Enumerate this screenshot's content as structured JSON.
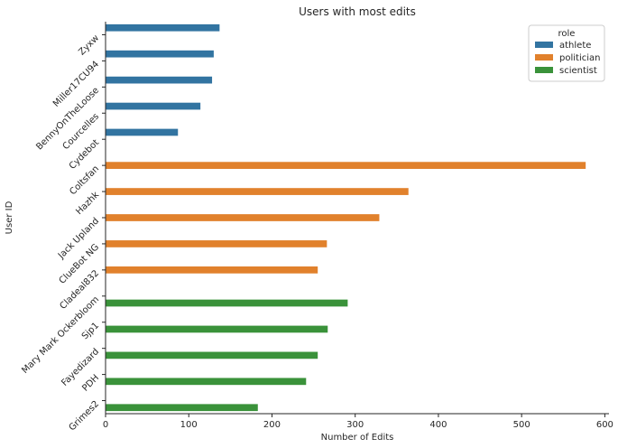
{
  "chart_data": {
    "type": "bar",
    "orientation": "horizontal",
    "title": "Users with most edits",
    "xlabel": "Number of Edits",
    "ylabel": "User ID",
    "xlim": [
      0,
      605
    ],
    "xticks": [
      0,
      100,
      200,
      300,
      400,
      500,
      600
    ],
    "categories": [
      "Zyxw",
      "Miller17CU94",
      "BennyOnTheLoose",
      "Courcelles",
      "Cydebot",
      "Coltsfan",
      "Hazhk",
      "Jack Upland",
      "ClueBot NG",
      "Cladeal832",
      "Mary Mark Ockerbloom",
      "Sjp1",
      "Fayedizard",
      "PDH",
      "Grimes2"
    ],
    "hue_order": [
      "athlete",
      "politician",
      "scientist"
    ],
    "colors": {
      "athlete": "#3274a1",
      "politician": "#e1812c",
      "scientist": "#3a923a"
    },
    "bars": [
      {
        "user": "Zyxw",
        "role": "athlete",
        "value": 137
      },
      {
        "user": "Miller17CU94",
        "role": "athlete",
        "value": 130
      },
      {
        "user": "BennyOnTheLoose",
        "role": "athlete",
        "value": 128
      },
      {
        "user": "Courcelles",
        "role": "athlete",
        "value": 114
      },
      {
        "user": "Cydebot",
        "role": "athlete",
        "value": 87
      },
      {
        "user": "Coltsfan",
        "role": "politician",
        "value": 577
      },
      {
        "user": "Hazhk",
        "role": "politician",
        "value": 364
      },
      {
        "user": "Jack Upland",
        "role": "politician",
        "value": 329
      },
      {
        "user": "ClueBot NG",
        "role": "politician",
        "value": 266
      },
      {
        "user": "Cladeal832",
        "role": "politician",
        "value": 255
      },
      {
        "user": "Mary Mark Ockerbloom",
        "role": "scientist",
        "value": 291
      },
      {
        "user": "Sjp1",
        "role": "scientist",
        "value": 267
      },
      {
        "user": "Fayedizard",
        "role": "scientist",
        "value": 255
      },
      {
        "user": "PDH",
        "role": "scientist",
        "value": 241
      },
      {
        "user": "Grimes2",
        "role": "scientist",
        "value": 183
      }
    ],
    "legend": {
      "title": "role",
      "placement": "top-right",
      "entries": [
        "athlete",
        "politician",
        "scientist"
      ]
    },
    "grid": false
  }
}
